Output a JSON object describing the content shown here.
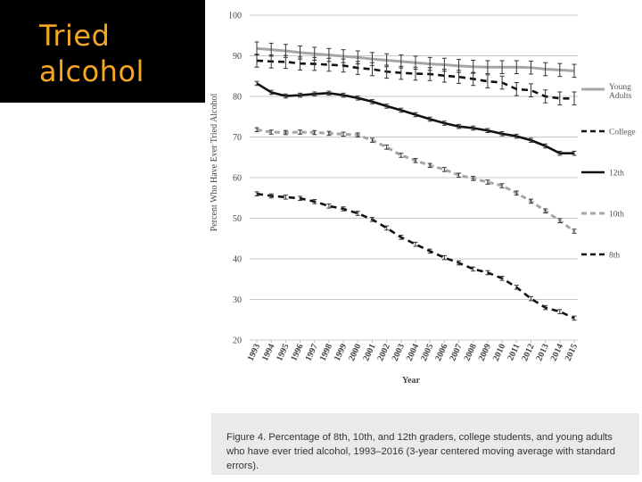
{
  "slide": {
    "title_lines": [
      "Tried",
      "alcohol"
    ],
    "title_color": "#f5a623",
    "title_bg": "#000000"
  },
  "caption": "Figure 4. Percentage of 8th, 10th, and 12th graders, college students, and young adults who have ever tried alcohol, 1993–2016 (3-year centered moving average with standard errors).",
  "chart_data": {
    "type": "line",
    "xlabel": "Year",
    "ylabel": "Percent Who Have Ever Tried Alcohol",
    "ylim": [
      20,
      100
    ],
    "yticks": [
      20,
      30,
      40,
      50,
      60,
      70,
      80,
      90,
      100
    ],
    "categories": [
      "1993",
      "1994",
      "1995",
      "1996",
      "1997",
      "1998",
      "1999",
      "2000",
      "2001",
      "2002",
      "2003",
      "2004",
      "2005",
      "2006",
      "2007",
      "2008",
      "2009",
      "2010",
      "2011",
      "2012",
      "2013",
      "2014",
      "2015"
    ],
    "legend_position": "right",
    "series": [
      {
        "name": "Young Adults",
        "color": "#a6a6a6",
        "style": "solid",
        "width": 3,
        "values": [
          91.8,
          91.5,
          91.2,
          90.8,
          90.5,
          90.2,
          89.9,
          89.6,
          89.2,
          88.9,
          88.6,
          88.3,
          88.0,
          87.8,
          87.5,
          87.3,
          87.2,
          87.2,
          87.2,
          87.1,
          86.7,
          86.5,
          86.3
        ]
      },
      {
        "name": "College",
        "color": "#111111",
        "style": "dashed",
        "width": 2.6,
        "values": [
          88.8,
          88.6,
          88.5,
          88.1,
          88.0,
          87.8,
          87.6,
          87.0,
          86.7,
          86.1,
          85.8,
          85.6,
          85.5,
          85.1,
          84.8,
          84.3,
          83.7,
          83.4,
          81.8,
          81.5,
          80.0,
          79.5,
          79.5
        ]
      },
      {
        "name": "12th",
        "color": "#111111",
        "style": "solid",
        "width": 2.6,
        "values": [
          83.2,
          81.0,
          80.1,
          80.3,
          80.6,
          80.8,
          80.3,
          79.6,
          78.7,
          77.6,
          76.6,
          75.5,
          74.4,
          73.4,
          72.6,
          72.2,
          71.6,
          70.8,
          70.2,
          69.2,
          67.8,
          66.0,
          66.0
        ]
      },
      {
        "name": "10th",
        "color": "#a6a6a6",
        "style": "dashed",
        "width": 3,
        "values": [
          71.8,
          71.2,
          71.1,
          71.2,
          71.1,
          70.9,
          70.7,
          70.5,
          69.2,
          67.5,
          65.5,
          64.2,
          63.0,
          62.0,
          60.6,
          59.8,
          58.9,
          58.0,
          56.2,
          54.2,
          51.8,
          49.4,
          46.8
        ]
      },
      {
        "name": "8th",
        "color": "#111111",
        "style": "dashed",
        "width": 2.6,
        "values": [
          56.0,
          55.5,
          55.2,
          54.9,
          54.1,
          53.0,
          52.3,
          51.2,
          49.7,
          47.6,
          45.3,
          43.6,
          41.9,
          40.3,
          39.0,
          37.5,
          36.6,
          35.2,
          33.0,
          30.2,
          28.0,
          27.0,
          25.4
        ]
      }
    ]
  }
}
